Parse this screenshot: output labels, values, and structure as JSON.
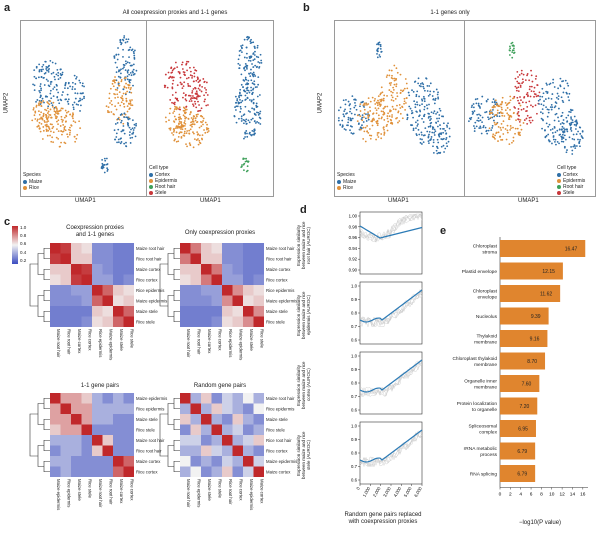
{
  "panel_a": {
    "label": "a",
    "title": "All coexpression proxies and 1-1 genes",
    "y_label": "UMAP2",
    "x_label": "UMAP1",
    "species_legend": {
      "title": "Species",
      "items": [
        {
          "name": "Maize",
          "color": "#2f6fa7"
        },
        {
          "name": "Rice",
          "color": "#e0913a"
        }
      ]
    },
    "celltype_legend": {
      "title": "Cell type",
      "items": [
        {
          "name": "Cortex",
          "color": "#2f6fa7"
        },
        {
          "name": "Epidermis",
          "color": "#e0913a"
        },
        {
          "name": "Root hair",
          "color": "#3ea05a"
        },
        {
          "name": "Stele",
          "color": "#c8373a"
        }
      ]
    }
  },
  "panel_b": {
    "label": "b",
    "title": "1-1 genes only",
    "y_label": "UMAP2",
    "x_label": "UMAP1",
    "species_legend": {
      "title": "Species",
      "items": [
        {
          "name": "Maize",
          "color": "#2f6fa7"
        },
        {
          "name": "Rice",
          "color": "#e0913a"
        }
      ]
    },
    "celltype_legend": {
      "title": "Cell type",
      "items": [
        {
          "name": "Cortex",
          "color": "#2f6fa7"
        },
        {
          "name": "Epidermis",
          "color": "#e0913a"
        },
        {
          "name": "Root hair",
          "color": "#3ea05a"
        },
        {
          "name": "Stele",
          "color": "#c8373a"
        }
      ]
    }
  },
  "panel_c": {
    "label": "c",
    "colorbar_ticks": [
      "1.0",
      "0.8",
      "0.6",
      "0.4",
      "0.2"
    ],
    "heatmaps": [
      {
        "title": "Coexpression proxies\nand 1-1 genes",
        "rows": [
          "Maize root hair",
          "Rice root hair",
          "Maize cortex",
          "Rice cortex",
          "Rice epidermis",
          "Maize epidermis",
          "Maize stele",
          "Rice stele"
        ],
        "cols": [
          "Maize root hair",
          "Rice root hair",
          "Maize cortex",
          "Rice cortex",
          "Rice epidermis",
          "Maize epidermis",
          "Maize stele",
          "Rice stele"
        ]
      },
      {
        "title": "Only coexpression proxies",
        "rows": [
          "Maize root hair",
          "Rice root hair",
          "Maize cortex",
          "Rice cortex",
          "Rice epidermis",
          "Maize epidermis",
          "Maize stele",
          "Rice stele"
        ],
        "cols": [
          "Maize root hair",
          "Rice root hair",
          "Maize cortex",
          "Rice cortex",
          "Rice epidermis",
          "Maize epidermis",
          "Maize stele",
          "Rice stele"
        ]
      },
      {
        "title": "1-1 gene pairs",
        "rows": [
          "Maize epidermis",
          "Rice epidermis",
          "Maize stele",
          "Rice stele",
          "Maize root hair",
          "Rice root hair",
          "Maize cortex",
          "Rice cortex"
        ],
        "cols": [
          "Maize epidermis",
          "Rice epidermis",
          "Maize stele",
          "Rice stele",
          "Maize root hair",
          "Rice root hair",
          "Maize cortex",
          "Rice cortex"
        ]
      },
      {
        "title": "Random gene pairs",
        "rows": [
          "Maize root hair",
          "Rice epidermis",
          "Maize stele",
          "Rice stele",
          "Rice root hair",
          "Rice cortex",
          "Maize epidermis",
          "Maize cortex"
        ],
        "cols": [
          "Maize root hair",
          "Rice epidermis",
          "Maize stele",
          "Rice stele",
          "Rice root hair",
          "Rice cortex",
          "Maize epidermis",
          "Maize cortex"
        ]
      }
    ]
  },
  "panel_d": {
    "label": "d",
    "x_label": "Random gene pairs replaced\nwith coexpression proxies",
    "x_ticks": [
      "0",
      "1,000",
      "2,000",
      "3,000",
      "4,000",
      "5,000",
      "6,000"
    ],
    "subplots": [
      {
        "ylabel": "Expression similarity\nbetween maize and rice\nroot hair (AUROC)",
        "ticks": [
          "1.00",
          "0.98",
          "0.96",
          "0.94",
          "0.92",
          "0.90"
        ]
      },
      {
        "ylabel": "Expression similarity\nbetween maize and rice\nepidermis (AUROC)",
        "ticks": [
          "1.0",
          "0.9",
          "0.8",
          "0.7",
          "0.6"
        ]
      },
      {
        "ylabel": "Expression similarity\nbetween maize and rice\ncortex (AUROC)",
        "ticks": [
          "1.0",
          "0.9",
          "0.8",
          "0.7",
          "0.6"
        ]
      },
      {
        "ylabel": "Expression similarity\nbetween maize and rice\nstele (AUROC)",
        "ticks": [
          "1.0",
          "0.9",
          "0.8",
          "0.7",
          "0.6"
        ]
      }
    ]
  },
  "panel_e": {
    "label": "e",
    "x_label": "−log10(P value)",
    "x_ticks": [
      "0",
      "2",
      "4",
      "6",
      "8",
      "10",
      "12",
      "14",
      "16"
    ],
    "bar_color": "#e0852e"
  },
  "chart_data": {
    "type": "bar",
    "categories": [
      "Chloroplast stroma",
      "Plastid envelope",
      "Chloroplast envelope",
      "Nucleolus",
      "Thylakoid membrane",
      "Chloroplast thylakoid membrane",
      "Organelle inner membrane",
      "Protein localization to organelle",
      "Spliceosomal complex",
      "rRNA metabolic process",
      "RNA splicing"
    ],
    "values": [
      16.47,
      12.15,
      11.62,
      9.39,
      9.16,
      8.7,
      7.6,
      7.2,
      6.95,
      6.79,
      6.79
    ],
    "xlabel": "−log10(P value)",
    "xlim": [
      0,
      17
    ]
  }
}
